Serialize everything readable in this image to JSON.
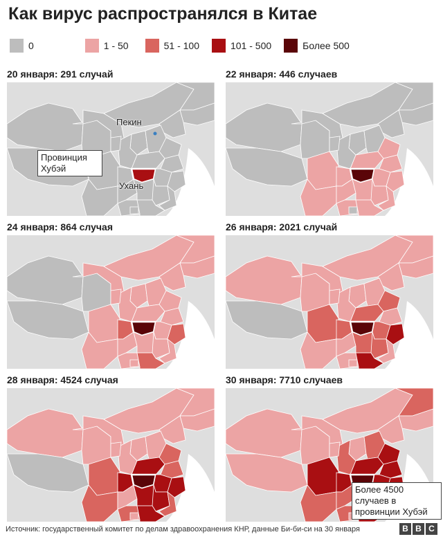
{
  "title": "Как вирус распространялся в Китае",
  "legend": [
    {
      "label": "0",
      "color": "#bdbdbd"
    },
    {
      "label": "1 - 50",
      "color": "#eca4a4"
    },
    {
      "label": "51 - 100",
      "color": "#d9655f"
    },
    {
      "label": "101 - 500",
      "color": "#a90f12"
    },
    {
      "label": "Более 500",
      "color": "#5a0508"
    }
  ],
  "panels": [
    {
      "label": "20 января: 291 случай",
      "stage": 0
    },
    {
      "label": "22 января: 446 случаев",
      "stage": 1
    },
    {
      "label": "24 января: 864 случая",
      "stage": 2
    },
    {
      "label": "26 января: 2021 случай",
      "stage": 3
    },
    {
      "label": "28 января: 4524 случая",
      "stage": 4
    },
    {
      "label": "30 января: 7710 случаев",
      "stage": 5
    }
  ],
  "annotations": {
    "beijing": "Пекин",
    "wuhan": "Ухань",
    "hubei_callout": "Провинция Хубэй",
    "final_callout": "Более 4500 случаев в провинции Хубэй"
  },
  "footer": "Источник: государственный комитет по делам здравоохранения КНР, данные Би-би-си на 30 января",
  "logo": [
    "B",
    "B",
    "C"
  ]
}
